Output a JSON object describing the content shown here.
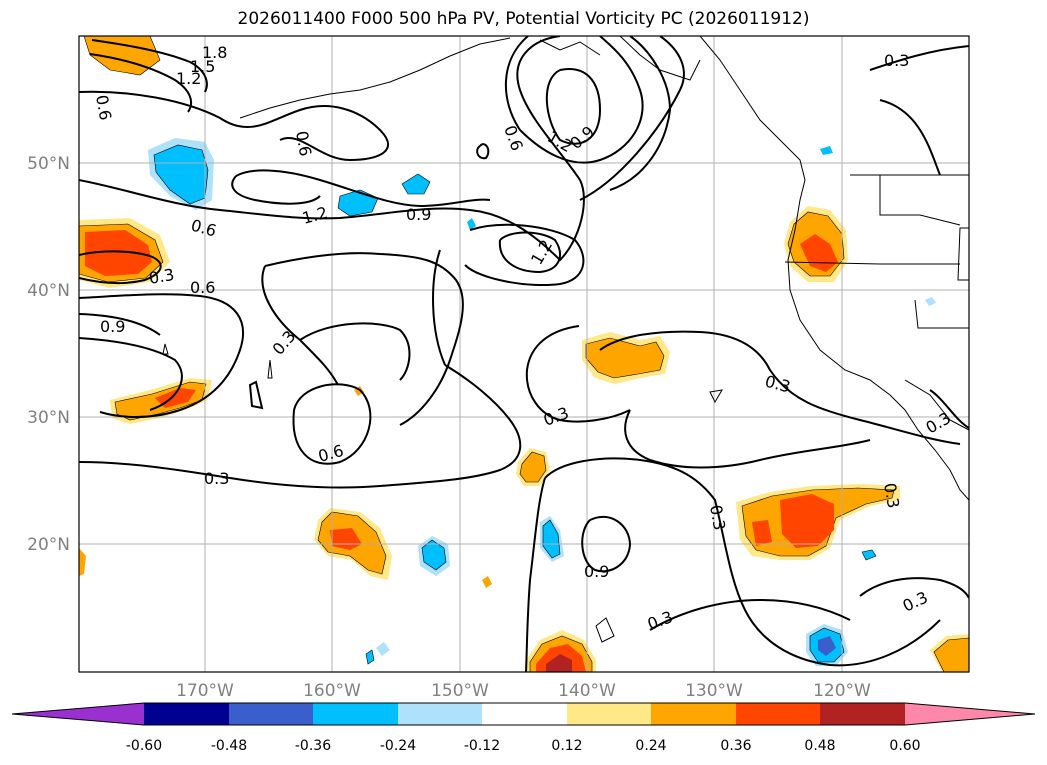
{
  "title": "2026011400 F000 500 hPa PV, Potential Vorticity PC (2026011912)",
  "lat_labels": [
    "50°N",
    "40°N",
    "30°N",
    "20°N"
  ],
  "lon_labels": [
    "170°W",
    "160°W",
    "150°W",
    "140°W",
    "130°W",
    "120°W"
  ],
  "contour_labels": [
    "1.8",
    "1.5",
    "1.2",
    "0.9",
    "0.6",
    "0.6",
    "0.6",
    "1.2",
    "0.9",
    "0.9",
    "1.2",
    "1.2",
    "0.3",
    "0.6",
    "0.9",
    "0.3",
    "0.6",
    "0.3",
    "0.3",
    "0.3",
    "0.3",
    "0.6",
    "0.3",
    "0.3",
    "0.3",
    "0.3",
    "0.3"
  ],
  "colorbar": {
    "ticks": [
      "-0.60",
      "-0.48",
      "-0.36",
      "-0.24",
      "-0.12",
      "0.12",
      "0.24",
      "0.36",
      "0.48",
      "0.60"
    ],
    "colors": {
      "under": "#9b30d0",
      "n060": "#000090",
      "n048": "#3a5fcd",
      "n036": "#00bfff",
      "n024": "#aee1fa",
      "zero": "#ffffff",
      "p012": "#ffe888",
      "p024": "#ffa500",
      "p036": "#ff4500",
      "p048": "#b22222",
      "over": "#ff88aa"
    }
  }
}
